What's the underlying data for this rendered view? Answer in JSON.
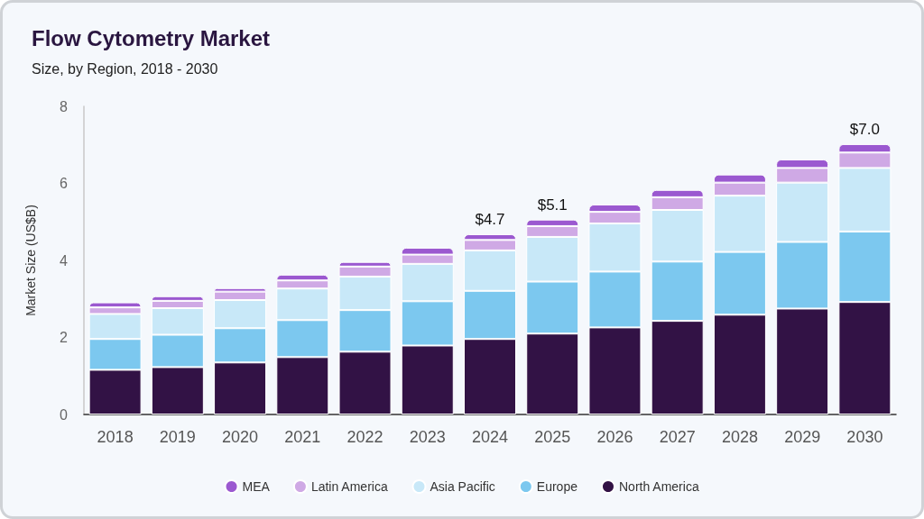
{
  "chart_data": {
    "type": "bar",
    "title": "Flow Cytometry Market",
    "subtitle": "Size, by Region, 2018 - 2030",
    "ylabel": "Market Size (US$B)",
    "categories": [
      "2018",
      "2019",
      "2020",
      "2021",
      "2022",
      "2023",
      "2024",
      "2025",
      "2026",
      "2027",
      "2028",
      "2029",
      "2030"
    ],
    "stacked": true,
    "series": [
      {
        "name": "North America",
        "color": "#321245",
        "values": [
          1.16,
          1.23,
          1.35,
          1.49,
          1.63,
          1.79,
          1.96,
          2.1,
          2.26,
          2.43,
          2.59,
          2.75,
          2.92
        ]
      },
      {
        "name": "Europe",
        "color": "#7cc8ef",
        "values": [
          0.8,
          0.84,
          0.89,
          0.96,
          1.08,
          1.15,
          1.25,
          1.35,
          1.45,
          1.54,
          1.63,
          1.73,
          1.83
        ]
      },
      {
        "name": "Asia Pacific",
        "color": "#c8e8f8",
        "values": [
          0.65,
          0.69,
          0.73,
          0.82,
          0.87,
          0.97,
          1.05,
          1.16,
          1.25,
          1.34,
          1.46,
          1.54,
          1.65
        ]
      },
      {
        "name": "Latin America",
        "color": "#cfa9e5",
        "values": [
          0.17,
          0.19,
          0.22,
          0.21,
          0.26,
          0.24,
          0.27,
          0.28,
          0.3,
          0.33,
          0.34,
          0.38,
          0.4
        ]
      },
      {
        "name": "MEA",
        "color": "#9b59d0",
        "values": [
          0.13,
          0.12,
          0.09,
          0.15,
          0.12,
          0.18,
          0.15,
          0.17,
          0.19,
          0.19,
          0.21,
          0.22,
          0.22
        ]
      }
    ],
    "totals": [
      null,
      null,
      null,
      null,
      null,
      null,
      "$4.7",
      "$5.1",
      null,
      null,
      null,
      null,
      "$7.0"
    ],
    "ylim": [
      0,
      8
    ],
    "yticks": [
      0,
      2,
      4,
      6,
      8
    ],
    "grid": false,
    "legend": "bottom"
  }
}
